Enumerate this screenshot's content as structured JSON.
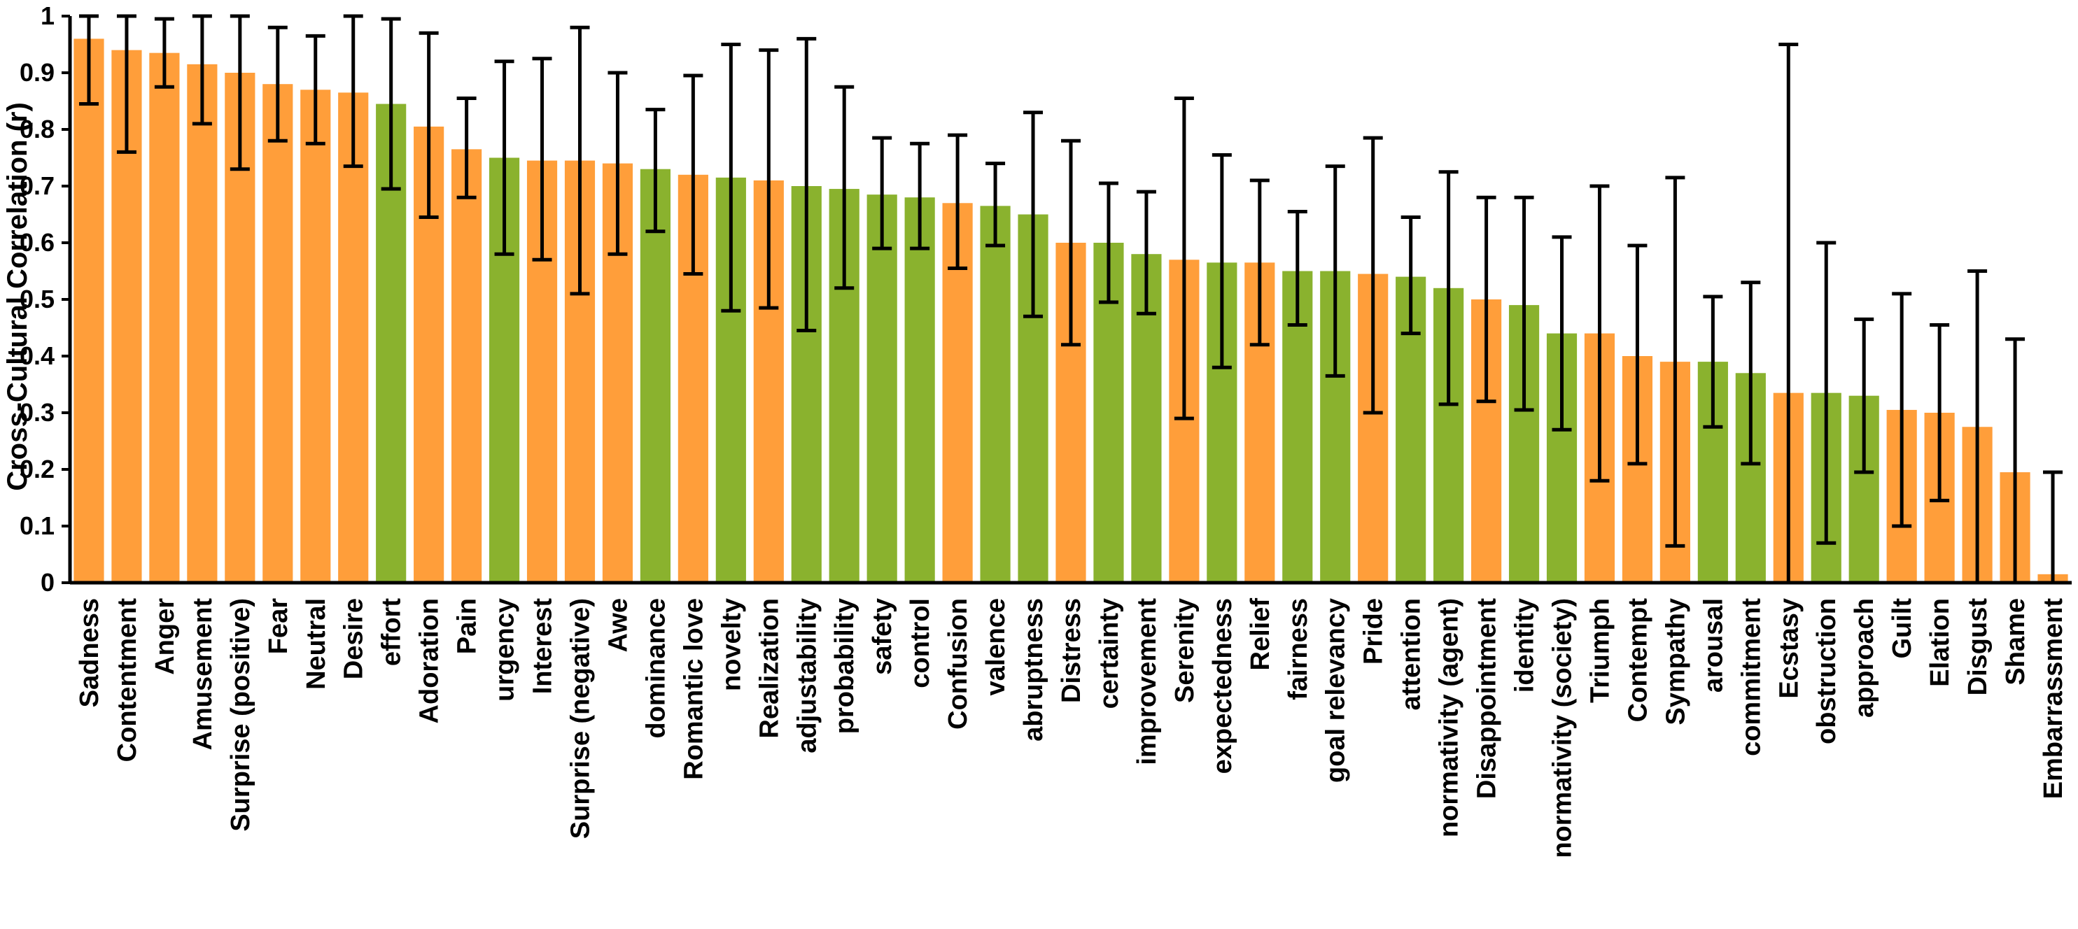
{
  "colors": {
    "emotion": "#FF9E3A",
    "appraisal": "#8AB22E",
    "error_bar": "#000000",
    "axis": "#000000"
  },
  "chart_data": {
    "type": "bar",
    "title": "",
    "xlabel": "",
    "ylabel": "Cross-Cultural Correlation (r)",
    "ylim": [
      0,
      1
    ],
    "yticks": [
      "0",
      "0.1",
      "0.2",
      "0.3",
      "0.4",
      "0.5",
      "0.6",
      "0.7",
      "0.8",
      "0.9",
      "1"
    ],
    "grid": false,
    "legend": "none",
    "bars": [
      {
        "label": "Sadness",
        "value": 0.96,
        "err_low": 0.845,
        "err_high": 1.0,
        "group": "emotion"
      },
      {
        "label": "Contentment",
        "value": 0.94,
        "err_low": 0.76,
        "err_high": 1.0,
        "group": "emotion"
      },
      {
        "label": "Anger",
        "value": 0.935,
        "err_low": 0.875,
        "err_high": 0.995,
        "group": "emotion"
      },
      {
        "label": "Amusement",
        "value": 0.915,
        "err_low": 0.81,
        "err_high": 1.0,
        "group": "emotion"
      },
      {
        "label": "Surprise (positive)",
        "value": 0.9,
        "err_low": 0.73,
        "err_high": 1.0,
        "group": "emotion"
      },
      {
        "label": "Fear",
        "value": 0.88,
        "err_low": 0.78,
        "err_high": 0.98,
        "group": "emotion"
      },
      {
        "label": "Neutral",
        "value": 0.87,
        "err_low": 0.775,
        "err_high": 0.965,
        "group": "emotion"
      },
      {
        "label": "Desire",
        "value": 0.865,
        "err_low": 0.735,
        "err_high": 1.0,
        "group": "emotion"
      },
      {
        "label": "effort",
        "value": 0.845,
        "err_low": 0.695,
        "err_high": 0.995,
        "group": "appraisal"
      },
      {
        "label": "Adoration",
        "value": 0.805,
        "err_low": 0.645,
        "err_high": 0.97,
        "group": "emotion"
      },
      {
        "label": "Pain",
        "value": 0.765,
        "err_low": 0.68,
        "err_high": 0.855,
        "group": "emotion"
      },
      {
        "label": "urgency",
        "value": 0.75,
        "err_low": 0.58,
        "err_high": 0.92,
        "group": "appraisal"
      },
      {
        "label": "Interest",
        "value": 0.745,
        "err_low": 0.57,
        "err_high": 0.925,
        "group": "emotion"
      },
      {
        "label": "Surprise (negative)",
        "value": 0.745,
        "err_low": 0.51,
        "err_high": 0.98,
        "group": "emotion"
      },
      {
        "label": "Awe",
        "value": 0.74,
        "err_low": 0.58,
        "err_high": 0.9,
        "group": "emotion"
      },
      {
        "label": "dominance",
        "value": 0.73,
        "err_low": 0.62,
        "err_high": 0.835,
        "group": "appraisal"
      },
      {
        "label": "Romantic love",
        "value": 0.72,
        "err_low": 0.545,
        "err_high": 0.895,
        "group": "emotion"
      },
      {
        "label": "novelty",
        "value": 0.715,
        "err_low": 0.48,
        "err_high": 0.95,
        "group": "appraisal"
      },
      {
        "label": "Realization",
        "value": 0.71,
        "err_low": 0.485,
        "err_high": 0.94,
        "group": "emotion"
      },
      {
        "label": "adjustability",
        "value": 0.7,
        "err_low": 0.445,
        "err_high": 0.96,
        "group": "appraisal"
      },
      {
        "label": "probability",
        "value": 0.695,
        "err_low": 0.52,
        "err_high": 0.875,
        "group": "appraisal"
      },
      {
        "label": "safety",
        "value": 0.685,
        "err_low": 0.59,
        "err_high": 0.785,
        "group": "appraisal"
      },
      {
        "label": "control",
        "value": 0.68,
        "err_low": 0.59,
        "err_high": 0.775,
        "group": "appraisal"
      },
      {
        "label": "Confusion",
        "value": 0.67,
        "err_low": 0.555,
        "err_high": 0.79,
        "group": "emotion"
      },
      {
        "label": "valence",
        "value": 0.665,
        "err_low": 0.595,
        "err_high": 0.74,
        "group": "appraisal"
      },
      {
        "label": "abruptness",
        "value": 0.65,
        "err_low": 0.47,
        "err_high": 0.83,
        "group": "appraisal"
      },
      {
        "label": "Distress",
        "value": 0.6,
        "err_low": 0.42,
        "err_high": 0.78,
        "group": "emotion"
      },
      {
        "label": "certainty",
        "value": 0.6,
        "err_low": 0.495,
        "err_high": 0.705,
        "group": "appraisal"
      },
      {
        "label": "improvement",
        "value": 0.58,
        "err_low": 0.475,
        "err_high": 0.69,
        "group": "appraisal"
      },
      {
        "label": "Serenity",
        "value": 0.57,
        "err_low": 0.29,
        "err_high": 0.855,
        "group": "emotion"
      },
      {
        "label": "expectedness",
        "value": 0.565,
        "err_low": 0.38,
        "err_high": 0.755,
        "group": "appraisal"
      },
      {
        "label": "Relief",
        "value": 0.565,
        "err_low": 0.42,
        "err_high": 0.71,
        "group": "emotion"
      },
      {
        "label": "fairness",
        "value": 0.55,
        "err_low": 0.455,
        "err_high": 0.655,
        "group": "appraisal"
      },
      {
        "label": "goal relevancy",
        "value": 0.55,
        "err_low": 0.365,
        "err_high": 0.735,
        "group": "appraisal"
      },
      {
        "label": "Pride",
        "value": 0.545,
        "err_low": 0.3,
        "err_high": 0.785,
        "group": "emotion"
      },
      {
        "label": "attention",
        "value": 0.54,
        "err_low": 0.44,
        "err_high": 0.645,
        "group": "appraisal"
      },
      {
        "label": "normativity (agent)",
        "value": 0.52,
        "err_low": 0.315,
        "err_high": 0.725,
        "group": "appraisal"
      },
      {
        "label": "Disappointment",
        "value": 0.5,
        "err_low": 0.32,
        "err_high": 0.68,
        "group": "emotion"
      },
      {
        "label": "identity",
        "value": 0.49,
        "err_low": 0.305,
        "err_high": 0.68,
        "group": "appraisal"
      },
      {
        "label": "normativity (society)",
        "value": 0.44,
        "err_low": 0.27,
        "err_high": 0.61,
        "group": "appraisal"
      },
      {
        "label": "Triumph",
        "value": 0.44,
        "err_low": 0.18,
        "err_high": 0.7,
        "group": "emotion"
      },
      {
        "label": "Contempt",
        "value": 0.4,
        "err_low": 0.21,
        "err_high": 0.595,
        "group": "emotion"
      },
      {
        "label": "Sympathy",
        "value": 0.39,
        "err_low": 0.065,
        "err_high": 0.715,
        "group": "emotion"
      },
      {
        "label": "arousal",
        "value": 0.39,
        "err_low": 0.275,
        "err_high": 0.505,
        "group": "appraisal"
      },
      {
        "label": "commitment",
        "value": 0.37,
        "err_low": 0.21,
        "err_high": 0.53,
        "group": "appraisal"
      },
      {
        "label": "Ecstasy",
        "value": 0.335,
        "err_low": 0.0,
        "err_high": 0.95,
        "group": "emotion"
      },
      {
        "label": "obstruction",
        "value": 0.335,
        "err_low": 0.07,
        "err_high": 0.6,
        "group": "appraisal"
      },
      {
        "label": "approach",
        "value": 0.33,
        "err_low": 0.195,
        "err_high": 0.465,
        "group": "appraisal"
      },
      {
        "label": "Guilt",
        "value": 0.305,
        "err_low": 0.1,
        "err_high": 0.51,
        "group": "emotion"
      },
      {
        "label": "Elation",
        "value": 0.3,
        "err_low": 0.145,
        "err_high": 0.455,
        "group": "emotion"
      },
      {
        "label": "Disgust",
        "value": 0.275,
        "err_low": 0.0,
        "err_high": 0.55,
        "group": "emotion"
      },
      {
        "label": "Shame",
        "value": 0.195,
        "err_low": 0.0,
        "err_high": 0.43,
        "group": "emotion"
      },
      {
        "label": "Embarrassment",
        "value": 0.015,
        "err_low": 0.0,
        "err_high": 0.195,
        "group": "emotion"
      }
    ]
  }
}
